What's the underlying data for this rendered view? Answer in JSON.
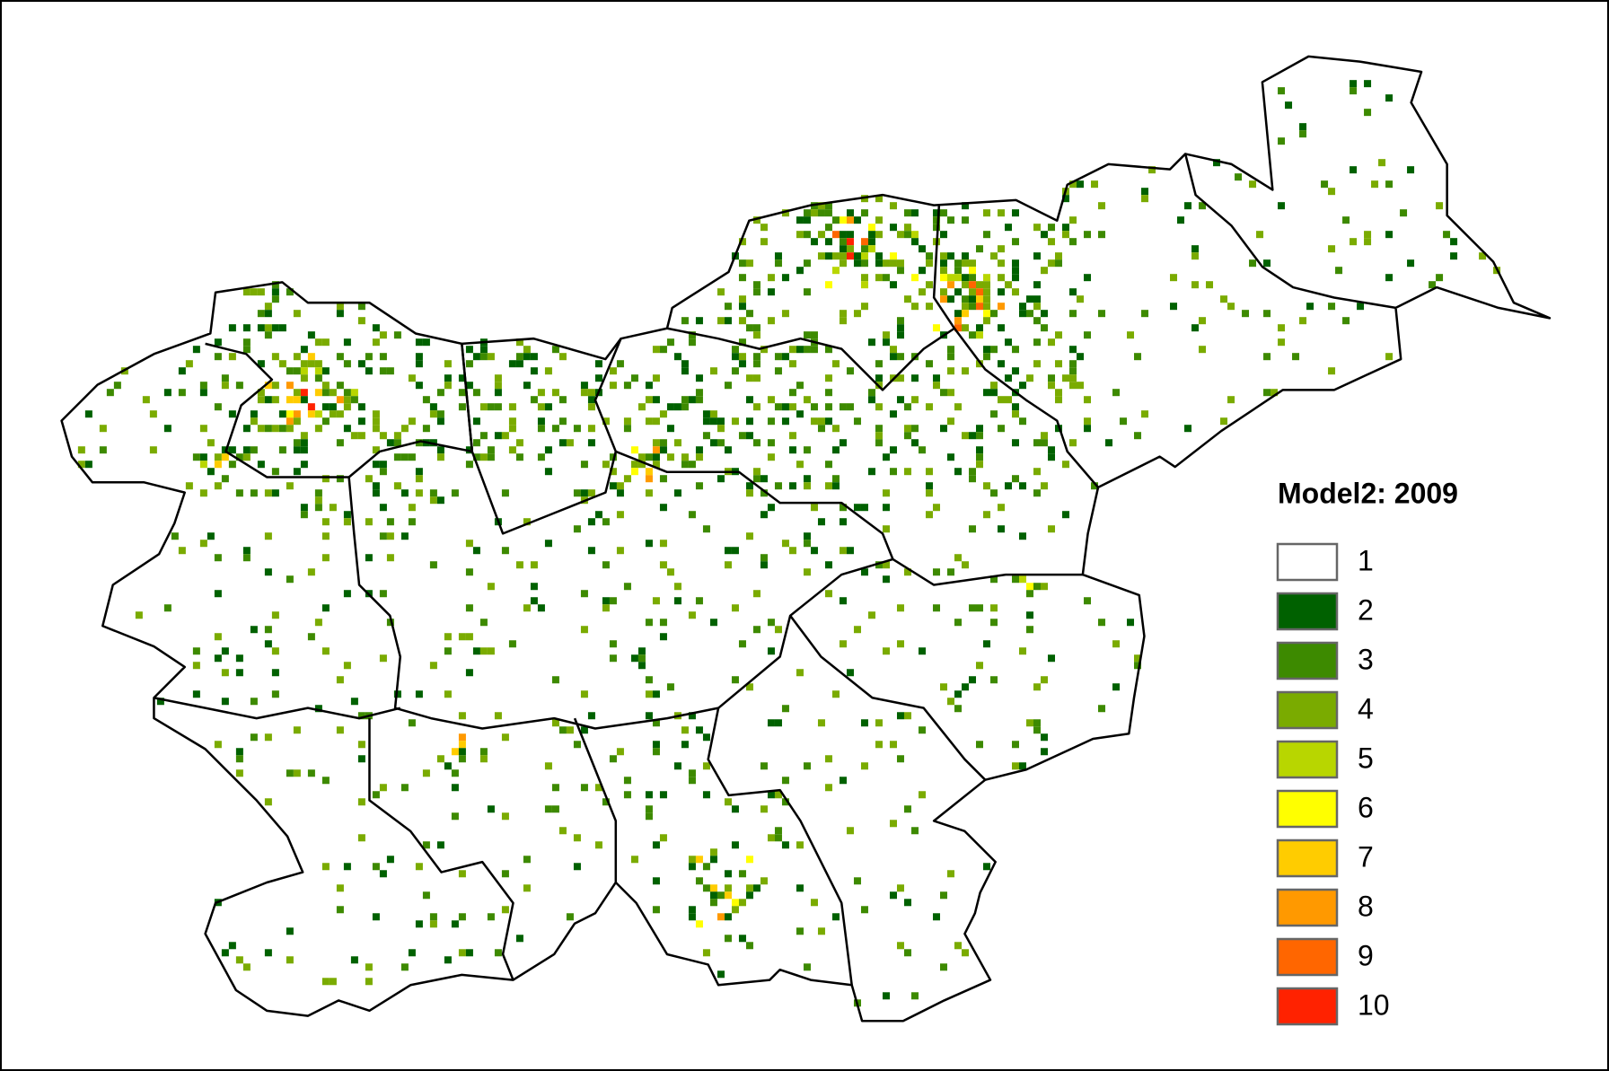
{
  "legend": {
    "title": "Model2: 2009",
    "items": [
      {
        "label": "1",
        "color": "#ffffff"
      },
      {
        "label": "2",
        "color": "#006100"
      },
      {
        "label": "3",
        "color": "#3d8a00"
      },
      {
        "label": "4",
        "color": "#7aab00"
      },
      {
        "label": "5",
        "color": "#b8d600"
      },
      {
        "label": "6",
        "color": "#ffff00"
      },
      {
        "label": "7",
        "color": "#ffcc00"
      },
      {
        "label": "8",
        "color": "#ff9900"
      },
      {
        "label": "9",
        "color": "#ff6600"
      },
      {
        "label": "10",
        "color": "#ff2200"
      }
    ]
  }
}
